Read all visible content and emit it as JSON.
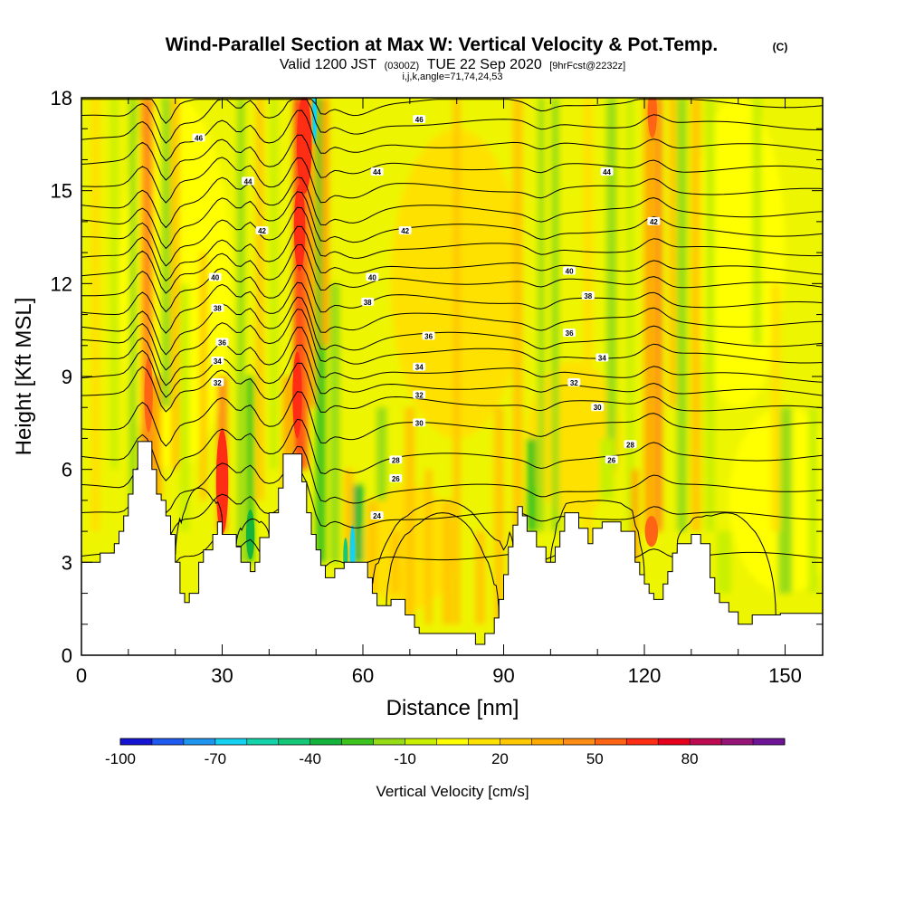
{
  "header": {
    "title": "Wind-Parallel Section at Max W: Vertical Velocity & Pot.Temp.",
    "copyright": "(C)",
    "valid_prefix": "Valid 1200 JST",
    "valid_z": "(0300Z)",
    "valid_date": "TUE 22 Sep 2020",
    "forecast": "[9hrFcst@2232z]",
    "indices": "i,j,k,angle=71,74,24,53"
  },
  "chart_data": {
    "type": "heatmap",
    "xlabel": "Distance [nm]",
    "ylabel": "Height [Kft MSL]",
    "xlim": [
      0,
      158
    ],
    "ylim": [
      0,
      18
    ],
    "x_ticks": [
      "0",
      "30",
      "60",
      "90",
      "120",
      "150"
    ],
    "y_ticks": [
      "0",
      "3",
      "6",
      "9",
      "12",
      "15",
      "18"
    ],
    "colorbar": {
      "label": "Vertical Velocity [cm/s]",
      "tick_labels": [
        "-100",
        "-70",
        "-40",
        "-10",
        "20",
        "50",
        "80"
      ],
      "colors": [
        "#1414d2",
        "#1e5af0",
        "#1e96f0",
        "#14d2f0",
        "#14d2aa",
        "#14c878",
        "#14b43c",
        "#3cc31e",
        "#96dc14",
        "#c8f000",
        "#ffff00",
        "#ffe100",
        "#ffc800",
        "#ffaa00",
        "#ff8c14",
        "#ff6414",
        "#ff2d14",
        "#e6001e",
        "#be0a50",
        "#961478",
        "#6e1496"
      ]
    },
    "theta_contour_labels": [
      {
        "x": 25,
        "y": 16.7,
        "label": "46"
      },
      {
        "x": 72,
        "y": 17.3,
        "label": "46"
      },
      {
        "x": 63,
        "y": 15.6,
        "label": "44"
      },
      {
        "x": 112,
        "y": 15.6,
        "label": "44"
      },
      {
        "x": 35.5,
        "y": 15.3,
        "label": "44"
      },
      {
        "x": 38.5,
        "y": 13.7,
        "label": "42"
      },
      {
        "x": 69,
        "y": 13.7,
        "label": "42"
      },
      {
        "x": 122,
        "y": 14.0,
        "label": "42"
      },
      {
        "x": 28.5,
        "y": 12.2,
        "label": "40"
      },
      {
        "x": 62,
        "y": 12.2,
        "label": "40"
      },
      {
        "x": 104,
        "y": 12.4,
        "label": "40"
      },
      {
        "x": 29,
        "y": 11.2,
        "label": "38"
      },
      {
        "x": 61,
        "y": 11.4,
        "label": "38"
      },
      {
        "x": 108,
        "y": 11.6,
        "label": "38"
      },
      {
        "x": 30,
        "y": 10.1,
        "label": "36"
      },
      {
        "x": 74,
        "y": 10.3,
        "label": "36"
      },
      {
        "x": 104,
        "y": 10.4,
        "label": "36"
      },
      {
        "x": 29,
        "y": 9.5,
        "label": "34"
      },
      {
        "x": 72,
        "y": 9.3,
        "label": "34"
      },
      {
        "x": 111,
        "y": 9.6,
        "label": "34"
      },
      {
        "x": 29,
        "y": 8.8,
        "label": "32"
      },
      {
        "x": 72,
        "y": 8.4,
        "label": "32"
      },
      {
        "x": 105,
        "y": 8.8,
        "label": "32"
      },
      {
        "x": 72,
        "y": 7.5,
        "label": "30"
      },
      {
        "x": 110,
        "y": 8.0,
        "label": "30"
      },
      {
        "x": 67,
        "y": 6.3,
        "label": "28"
      },
      {
        "x": 117,
        "y": 6.8,
        "label": "28"
      },
      {
        "x": 67,
        "y": 5.7,
        "label": "26"
      },
      {
        "x": 113,
        "y": 6.3,
        "label": "26"
      },
      {
        "x": 63,
        "y": 4.5,
        "label": "24"
      }
    ],
    "updraft_cores_cm_s": [
      {
        "x": 13.5,
        "w": 50
      },
      {
        "x": 30,
        "w": 60
      },
      {
        "x": 36,
        "w": 30
      },
      {
        "x": 47,
        "w": 70
      },
      {
        "x": 53,
        "w": 30
      },
      {
        "x": 122,
        "w": 40
      },
      {
        "x": 126,
        "w": 40
      }
    ],
    "downdraft_cores_cm_s": [
      {
        "x": 10,
        "w": -20
      },
      {
        "x": 18,
        "w": -20
      },
      {
        "x": 36,
        "w": -30
      },
      {
        "x": 51,
        "w": -50
      },
      {
        "x": 58,
        "w": -60
      },
      {
        "x": 98,
        "w": -40
      },
      {
        "x": 113,
        "w": -30
      },
      {
        "x": 148,
        "w": -20
      }
    ]
  }
}
